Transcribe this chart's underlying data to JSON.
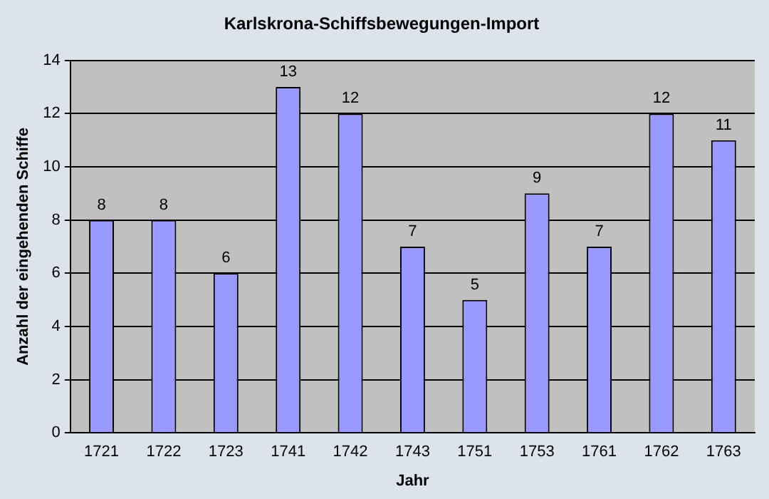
{
  "chart_data": {
    "type": "bar",
    "title": "Karlskrona-Schiffsbewegungen-Import",
    "xlabel": "Jahr",
    "ylabel": "Anzahl der eingehenden Schiffe",
    "categories": [
      "1721",
      "1722",
      "1723",
      "1741",
      "1742",
      "1743",
      "1751",
      "1753",
      "1761",
      "1762",
      "1763"
    ],
    "values": [
      8,
      8,
      6,
      13,
      12,
      7,
      5,
      9,
      7,
      12,
      11
    ],
    "color": "#9999ff",
    "ylim": [
      0,
      14
    ],
    "yticks": [
      0,
      2,
      4,
      6,
      8,
      10,
      12,
      14
    ],
    "grid": "y",
    "data_labels": true
  }
}
